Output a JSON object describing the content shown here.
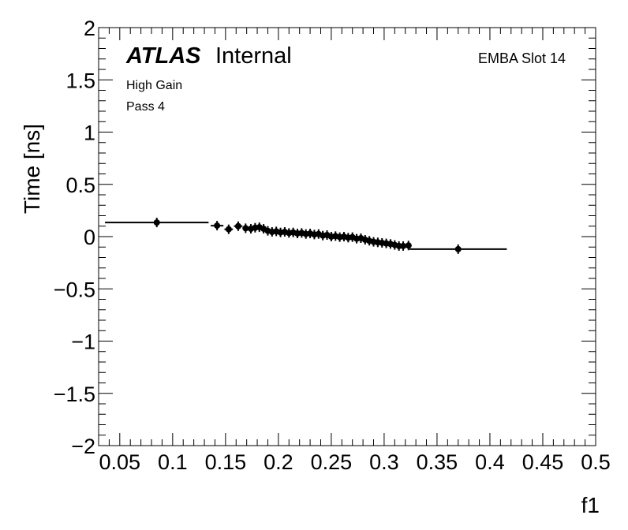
{
  "chart_data": {
    "type": "scatter",
    "xlabel": "f1",
    "ylabel": "Time [ns]",
    "xlim": [
      0.03,
      0.5
    ],
    "ylim": [
      -2,
      2
    ],
    "x_ticks": [
      0.05,
      0.1,
      0.15,
      0.2,
      0.25,
      0.3,
      0.35,
      0.4,
      0.45,
      0.5
    ],
    "x_tick_labels": [
      "0.05",
      "0.1",
      "0.15",
      "0.2",
      "0.25",
      "0.3",
      "0.35",
      "0.4",
      "0.45",
      "0.5"
    ],
    "y_ticks": [
      -2,
      -1.5,
      -1,
      -0.5,
      0,
      0.5,
      1,
      1.5,
      2
    ],
    "y_tick_labels": [
      "−2",
      "−1.5",
      "−1",
      "−0.5",
      "0",
      "0.5",
      "1",
      "1.5",
      "2"
    ],
    "grid": false,
    "annotations": {
      "atlas": "ATLAS",
      "internal": "Internal",
      "gain": "High Gain",
      "pass": "Pass 4",
      "module": "EMBA Slot 14"
    },
    "series": [
      {
        "marker": "circle",
        "color": "#000000",
        "points": [
          {
            "x": 0.085,
            "y": 0.135,
            "xerr": 0.049
          },
          {
            "x": 0.142,
            "y": 0.105,
            "xerr": 0.006
          },
          {
            "x": 0.153,
            "y": 0.07,
            "xerr": 0.004
          },
          {
            "x": 0.162,
            "y": 0.1,
            "xerr": 0.004
          },
          {
            "x": 0.169,
            "y": 0.08,
            "xerr": 0.003
          },
          {
            "x": 0.174,
            "y": 0.075,
            "xerr": 0.003
          },
          {
            "x": 0.178,
            "y": 0.085,
            "xerr": 0.003
          },
          {
            "x": 0.182,
            "y": 0.09,
            "xerr": 0.002
          },
          {
            "x": 0.186,
            "y": 0.075,
            "xerr": 0.002
          },
          {
            "x": 0.19,
            "y": 0.055,
            "xerr": 0.002
          },
          {
            "x": 0.194,
            "y": 0.045,
            "xerr": 0.002
          },
          {
            "x": 0.198,
            "y": 0.05,
            "xerr": 0.002
          },
          {
            "x": 0.202,
            "y": 0.04,
            "xerr": 0.002
          },
          {
            "x": 0.206,
            "y": 0.045,
            "xerr": 0.002
          },
          {
            "x": 0.21,
            "y": 0.035,
            "xerr": 0.002
          },
          {
            "x": 0.214,
            "y": 0.04,
            "xerr": 0.002
          },
          {
            "x": 0.218,
            "y": 0.03,
            "xerr": 0.002
          },
          {
            "x": 0.222,
            "y": 0.035,
            "xerr": 0.002
          },
          {
            "x": 0.226,
            "y": 0.025,
            "xerr": 0.002
          },
          {
            "x": 0.23,
            "y": 0.03,
            "xerr": 0.002
          },
          {
            "x": 0.234,
            "y": 0.02,
            "xerr": 0.002
          },
          {
            "x": 0.238,
            "y": 0.025,
            "xerr": 0.002
          },
          {
            "x": 0.242,
            "y": 0.01,
            "xerr": 0.002
          },
          {
            "x": 0.246,
            "y": 0.015,
            "xerr": 0.002
          },
          {
            "x": 0.25,
            "y": 0.0,
            "xerr": 0.002
          },
          {
            "x": 0.254,
            "y": 0.005,
            "xerr": 0.002
          },
          {
            "x": 0.258,
            "y": -0.005,
            "xerr": 0.002
          },
          {
            "x": 0.262,
            "y": 0.0,
            "xerr": 0.002
          },
          {
            "x": 0.266,
            "y": -0.01,
            "xerr": 0.002
          },
          {
            "x": 0.27,
            "y": -0.005,
            "xerr": 0.002
          },
          {
            "x": 0.274,
            "y": -0.02,
            "xerr": 0.002
          },
          {
            "x": 0.278,
            "y": -0.015,
            "xerr": 0.002
          },
          {
            "x": 0.282,
            "y": -0.03,
            "xerr": 0.002
          },
          {
            "x": 0.286,
            "y": -0.04,
            "xerr": 0.002
          },
          {
            "x": 0.29,
            "y": -0.05,
            "xerr": 0.002
          },
          {
            "x": 0.294,
            "y": -0.055,
            "xerr": 0.002
          },
          {
            "x": 0.298,
            "y": -0.06,
            "xerr": 0.002
          },
          {
            "x": 0.302,
            "y": -0.065,
            "xerr": 0.002
          },
          {
            "x": 0.306,
            "y": -0.07,
            "xerr": 0.002
          },
          {
            "x": 0.31,
            "y": -0.08,
            "xerr": 0.002
          },
          {
            "x": 0.314,
            "y": -0.09,
            "xerr": 0.002
          },
          {
            "x": 0.318,
            "y": -0.09,
            "xerr": 0.003
          },
          {
            "x": 0.323,
            "y": -0.085,
            "xerr": 0.003
          },
          {
            "x": 0.37,
            "y": -0.12,
            "xerr": 0.046
          }
        ]
      }
    ]
  }
}
